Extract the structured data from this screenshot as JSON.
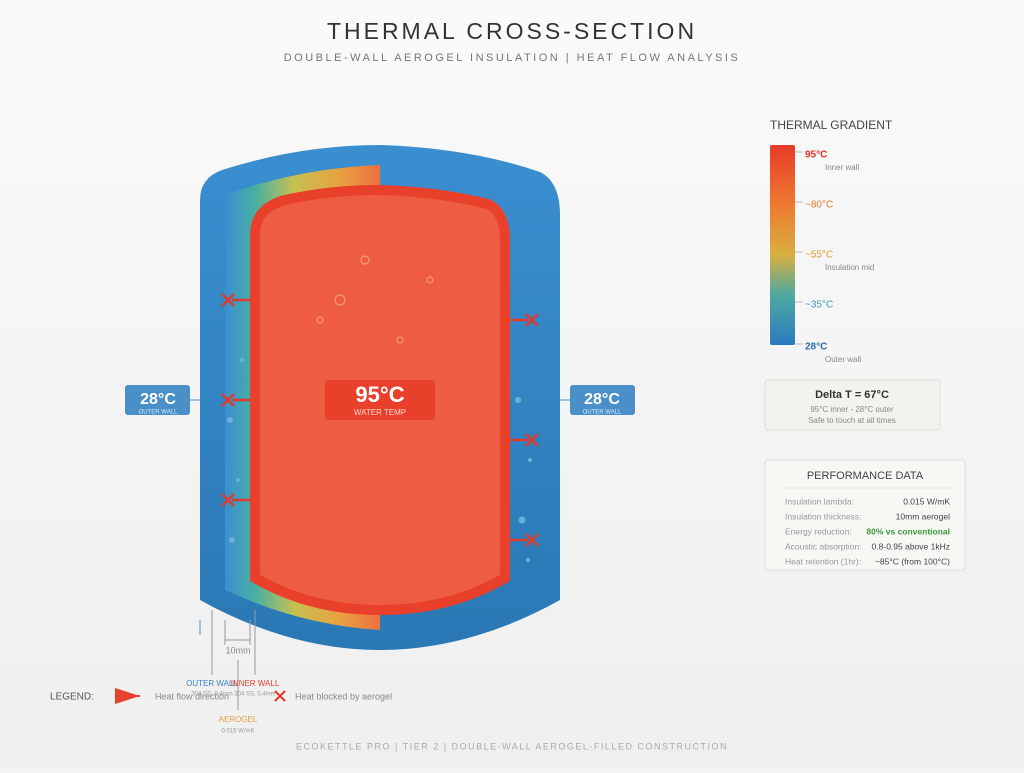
{
  "header": {
    "title": "THERMAL CROSS-SECTION",
    "subtitle": "DOUBLE-WALL AEROGEL INSULATION | HEAT FLOW ANALYSIS"
  },
  "vessel": {
    "water_temp": "95°C",
    "water_label": "WATER TEMP",
    "left_temp": "28°C",
    "left_label": "OUTER WALL",
    "right_temp": "28°C",
    "right_label": "OUTER WALL",
    "dimension": "10mm"
  },
  "layers": {
    "outer": "OUTER WALL",
    "outer_spec": "304 SS, 0.4mm",
    "inner": "INNER WALL",
    "inner_spec": "304 SS, 0.4mm",
    "aerogel": "AEROGEL",
    "aerogel_spec": "0.015 W/mK"
  },
  "gradient": {
    "title": "THERMAL GRADIENT",
    "stops": [
      {
        "label": "95°C",
        "note": "Inner wall"
      },
      {
        "label": "~80°C"
      },
      {
        "label": "~55°C",
        "note": "Insulation mid"
      },
      {
        "label": "~35°C"
      },
      {
        "label": "28°C",
        "note": "Outer wall"
      }
    ]
  },
  "delta": {
    "title": "Delta T = 67°C",
    "lines": [
      "95°C inner - 28°C outer",
      "Safe to touch at all times"
    ]
  },
  "performance": {
    "title": "PERFORMANCE DATA",
    "rows": [
      [
        "Insulation lambda:",
        "0.015 W/mK"
      ],
      [
        "Insulation thickness:",
        "10mm aerogel"
      ],
      [
        "Energy reduction:",
        "80% vs conventional"
      ],
      [
        "Acoustic absorption:",
        "0.8-0.95 above 1kHz"
      ],
      [
        "Heat retention (1hr):",
        "~85°C (from 100°C)"
      ]
    ]
  },
  "legend": {
    "label": "LEGEND:",
    "items": [
      "Heat flow direction",
      "Heat blocked by aerogel"
    ]
  },
  "footer": "ECOKETTLE PRO | TIER 2 | DOUBLE-WALL AEROGEL-FILLED CONSTRUCTION"
}
